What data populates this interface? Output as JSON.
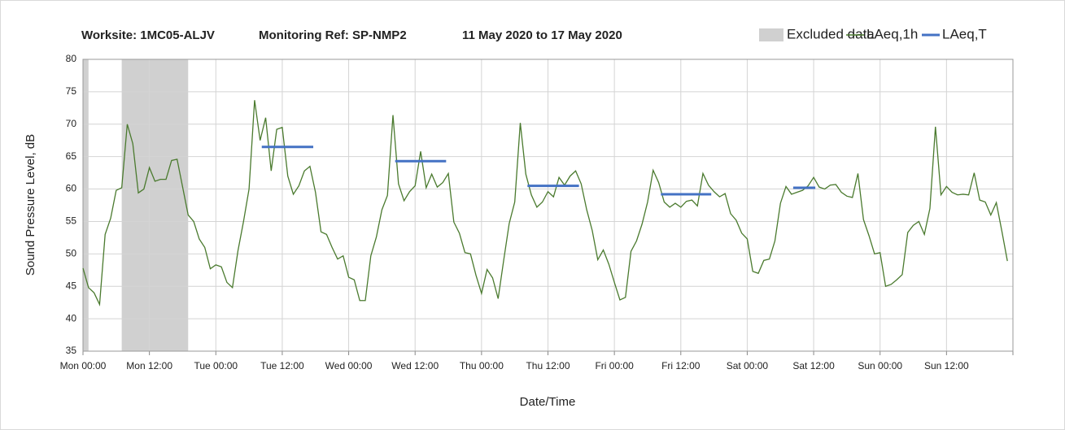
{
  "chart_data": {
    "type": "line",
    "title": [
      "Worksite: 1MC05-ALJV",
      "Monitoring Ref: SP-NMP2",
      "11 May 2020 to 17 May 2020"
    ],
    "xlabel": "Date/Time",
    "ylabel": "Sound Pressure Level, dB",
    "xlim": [
      0,
      168
    ],
    "xticks": [
      {
        "value": 0,
        "label": "Mon 00:00"
      },
      {
        "value": 12,
        "label": "Mon 12:00"
      },
      {
        "value": 24,
        "label": "Tue 00:00"
      },
      {
        "value": 36,
        "label": "Tue 12:00"
      },
      {
        "value": 48,
        "label": "Wed 00:00"
      },
      {
        "value": 60,
        "label": "Wed 12:00"
      },
      {
        "value": 72,
        "label": "Thu 00:00"
      },
      {
        "value": 84,
        "label": "Thu 12:00"
      },
      {
        "value": 96,
        "label": "Fri 00:00"
      },
      {
        "value": 108,
        "label": "Fri 12:00"
      },
      {
        "value": 120,
        "label": "Sat 00:00"
      },
      {
        "value": 132,
        "label": "Sat 12:00"
      },
      {
        "value": 144,
        "label": "Sun 00:00"
      },
      {
        "value": 156,
        "label": "Sun 12:00"
      },
      {
        "value": 168,
        "label": ""
      }
    ],
    "ylim": [
      35,
      80
    ],
    "yticks": [
      35,
      40,
      45,
      50,
      55,
      60,
      65,
      70,
      75,
      80
    ],
    "grid": true,
    "legend": "top-right",
    "excluded": {
      "name": "Excluded data",
      "color": "#d0d0d0",
      "ranges": [
        [
          0,
          1
        ],
        [
          7,
          19
        ]
      ]
    },
    "x": [
      0,
      1,
      2,
      3,
      4,
      5,
      6,
      7,
      8,
      9,
      10,
      11,
      12,
      13,
      14,
      15,
      16,
      17,
      18,
      19,
      20,
      21,
      22,
      23,
      24,
      25,
      26,
      27,
      28,
      29,
      30,
      31,
      32,
      33,
      34,
      35,
      36,
      37,
      38,
      39,
      40,
      41,
      42,
      43,
      44,
      45,
      46,
      47,
      48,
      49,
      50,
      51,
      52,
      53,
      54,
      55,
      56,
      57,
      58,
      59,
      60,
      61,
      62,
      63,
      64,
      65,
      66,
      67,
      68,
      69,
      70,
      71,
      72,
      73,
      74,
      75,
      76,
      77,
      78,
      79,
      80,
      81,
      82,
      83,
      84,
      85,
      86,
      87,
      88,
      89,
      90,
      91,
      92,
      93,
      94,
      95,
      96,
      97,
      98,
      99,
      100,
      101,
      102,
      103,
      104,
      105,
      106,
      107,
      108,
      109,
      110,
      111,
      112,
      113,
      114,
      115,
      116,
      117,
      118,
      119,
      120,
      121,
      122,
      123,
      124,
      125,
      126,
      127,
      128,
      129,
      130,
      131,
      132,
      133,
      134,
      135,
      136,
      137,
      138,
      139,
      140,
      141,
      142,
      143,
      144,
      145,
      146,
      147,
      148,
      149,
      150,
      151,
      152,
      153,
      154,
      155,
      156,
      157,
      158,
      159,
      160,
      161,
      162,
      163,
      164,
      165,
      166,
      167
    ],
    "series": [
      {
        "name": "LAeq,1h",
        "color": "#4a7a2e",
        "values": [
          47.8,
          44.8,
          44,
          42.2,
          53,
          55.5,
          59.8,
          60.2,
          70,
          67,
          59.4,
          60,
          63.3,
          61.2,
          61.5,
          61.5,
          64.4,
          64.6,
          60.3,
          56,
          55,
          52.3,
          51,
          47.7,
          48.3,
          48,
          45.6,
          44.8,
          50.5,
          55,
          60,
          73.7,
          67.5,
          71,
          62.8,
          69.2,
          69.5,
          62,
          59.2,
          60.5,
          62.8,
          63.5,
          59.5,
          53.4,
          53,
          51,
          49.2,
          49.7,
          46.4,
          46,
          42.8,
          42.8,
          49.7,
          52.6,
          56.8,
          59,
          71.4,
          60.8,
          58.2,
          59.6,
          60.5,
          65.8,
          60.2,
          62.3,
          60.3,
          61,
          62.4,
          54.9,
          53.2,
          50.2,
          50,
          46.7,
          43.9,
          47.6,
          46.3,
          43.1,
          49,
          54.7,
          58,
          70.2,
          62.3,
          59.1,
          57.2,
          58,
          59.6,
          58.8,
          61.8,
          60.6,
          62,
          62.8,
          60.8,
          56.8,
          53.6,
          49.1,
          50.6,
          48.4,
          45.6,
          42.9,
          43.3,
          50.4,
          52,
          54.6,
          58,
          62.9,
          61,
          58,
          57.2,
          57.8,
          57.2,
          58.1,
          58.3,
          57.4,
          62.4,
          60.6,
          59.6,
          58.8,
          59.3,
          56.2,
          55.2,
          53.2,
          52.3,
          47.3,
          47,
          49,
          49.2,
          52,
          57.8,
          60.4,
          59.2,
          59.5,
          59.8,
          60.5,
          61.8,
          60.3,
          60,
          60.6,
          60.7,
          59.5,
          58.9,
          58.7,
          62.4,
          55.3,
          52.8,
          50,
          50.2,
          45,
          45.3,
          46,
          46.8,
          53.3,
          54.4,
          55,
          53,
          57,
          69.6,
          59.1,
          60.4,
          59.5,
          59.1,
          59.2,
          59.1,
          62.5,
          58.3,
          58,
          56,
          57.9,
          53.5,
          48.9
        ]
      },
      {
        "name": "LAeq,T",
        "color": "#4472c4",
        "segments": [
          {
            "x": [
              32.3,
              41.6
            ],
            "value": 66.5
          },
          {
            "x": [
              56.4,
              65.6
            ],
            "value": 64.3
          },
          {
            "x": [
              80.3,
              89.6
            ],
            "value": 60.5
          },
          {
            "x": [
              104.4,
              113.5
            ],
            "value": 59.2
          },
          {
            "x": [
              128.3,
              132.3
            ],
            "value": 60.2
          }
        ]
      }
    ]
  }
}
